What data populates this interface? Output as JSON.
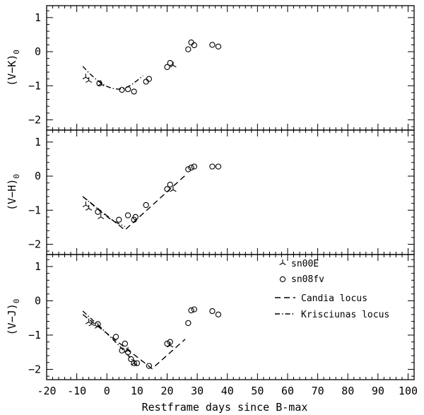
{
  "chart_data": {
    "type": "scatter",
    "xlabel": "Restframe days since B-max",
    "xlim": [
      -20,
      102
    ],
    "x_ticks": [
      "-20",
      "-10",
      "0",
      "10",
      "20",
      "30",
      "40",
      "50",
      "60",
      "70",
      "80",
      "90",
      "100"
    ],
    "legend": {
      "placement": "top-right of bottom panel",
      "entries": [
        "sn00E",
        "sn08fv",
        "Candia locus",
        "Krisciunas locus"
      ]
    },
    "panels": [
      {
        "id": "vk",
        "ylabel_main": "(V−K)",
        "ylabel_sub": "0",
        "ylim": [
          -2.3,
          1.35
        ],
        "y_ticks": [
          "−2",
          "−1",
          "0",
          "1"
        ],
        "series": [
          {
            "name": "sn00E",
            "marker": "triangle",
            "x": [
              -7,
              -6,
              -2
            ],
            "y": [
              -0.75,
              -0.85,
              -0.95
            ]
          },
          {
            "name": "sn08fv",
            "marker": "circle",
            "x": [
              -2.5,
              5,
              7,
              9,
              13,
              14,
              20,
              21,
              27,
              28,
              29,
              35,
              37
            ],
            "y": [
              -0.93,
              -1.12,
              -1.1,
              -1.17,
              -0.88,
              -0.8,
              -0.45,
              -0.33,
              0.07,
              0.27,
              0.19,
              0.2,
              0.15
            ]
          },
          {
            "name": "sn00E",
            "marker": "triangle",
            "x": [
              22
            ],
            "y": [
              -0.4
            ]
          }
        ],
        "loci": [
          {
            "name": "Krisciunas locus",
            "style": "dashdot",
            "x": [
              -8,
              -6,
              -4,
              -2,
              0,
              2,
              4,
              6,
              8,
              10,
              12
            ],
            "y": [
              -0.43,
              -0.62,
              -0.78,
              -0.92,
              -1.02,
              -1.08,
              -1.1,
              -1.07,
              -0.98,
              -0.85,
              -0.7
            ]
          }
        ]
      },
      {
        "id": "vh",
        "ylabel_main": "(V−H)",
        "ylabel_sub": "0",
        "ylim": [
          -2.3,
          1.35
        ],
        "y_ticks": [
          "−2",
          "−1",
          "0",
          "1"
        ],
        "series": [
          {
            "name": "sn00E",
            "marker": "triangle",
            "x": [
              -7,
              -6,
              -2,
              22
            ],
            "y": [
              -0.85,
              -0.95,
              -1.2,
              -0.4
            ]
          },
          {
            "name": "sn08fv",
            "marker": "circle",
            "x": [
              -3,
              4,
              7,
              9,
              13,
              20,
              21,
              27,
              28,
              29,
              35,
              37
            ],
            "y": [
              -1.05,
              -1.28,
              -1.15,
              -1.28,
              -0.85,
              -0.38,
              -0.25,
              0.2,
              0.25,
              0.28,
              0.28,
              0.28
            ]
          },
          {
            "name": "sn08fv",
            "marker": "circle",
            "x": [
              9.5
            ],
            "y": [
              -1.2
            ]
          }
        ],
        "loci": [
          {
            "name": "Krisciunas locus",
            "style": "dashdot",
            "x": [
              -8,
              -5,
              -2,
              1,
              4,
              6
            ],
            "y": [
              -0.6,
              -0.82,
              -1.05,
              -1.25,
              -1.4,
              -1.48
            ]
          },
          {
            "name": "Candia locus",
            "style": "dashed",
            "x": [
              -8,
              6,
              26
            ],
            "y": [
              -0.6,
              -1.58,
              0.02
            ]
          }
        ]
      },
      {
        "id": "vj",
        "ylabel_main": "(V−J)",
        "ylabel_sub": "0",
        "ylim": [
          -2.3,
          1.35
        ],
        "y_ticks": [
          "−2",
          "−1",
          "0",
          "1"
        ],
        "series": [
          {
            "name": "sn00E",
            "marker": "triangle",
            "x": [
              -6,
              -5,
              -3,
              7,
              9,
              21
            ],
            "y": [
              -0.62,
              -0.68,
              -0.75,
              -1.45,
              -1.82,
              -1.3
            ]
          },
          {
            "name": "sn08fv",
            "marker": "circle",
            "x": [
              -3,
              3,
              5,
              6,
              7,
              8,
              9,
              10,
              14,
              20,
              21,
              27,
              28,
              29,
              35,
              37
            ],
            "y": [
              -0.68,
              -1.05,
              -1.45,
              -1.25,
              -1.5,
              -1.7,
              -1.82,
              -1.82,
              -1.9,
              -1.25,
              -1.2,
              -0.65,
              -0.28,
              -0.25,
              -0.3,
              -0.4
            ]
          }
        ],
        "loci": [
          {
            "name": "Krisciunas locus",
            "style": "dashdot",
            "x": [
              -8,
              -2,
              4,
              9
            ],
            "y": [
              -0.3,
              -0.78,
              -1.3,
              -1.78
            ]
          },
          {
            "name": "Candia locus",
            "style": "dashed",
            "x": [
              -8,
              15,
              26
            ],
            "y": [
              -0.4,
              -1.98,
              -1.12
            ]
          }
        ]
      }
    ]
  }
}
